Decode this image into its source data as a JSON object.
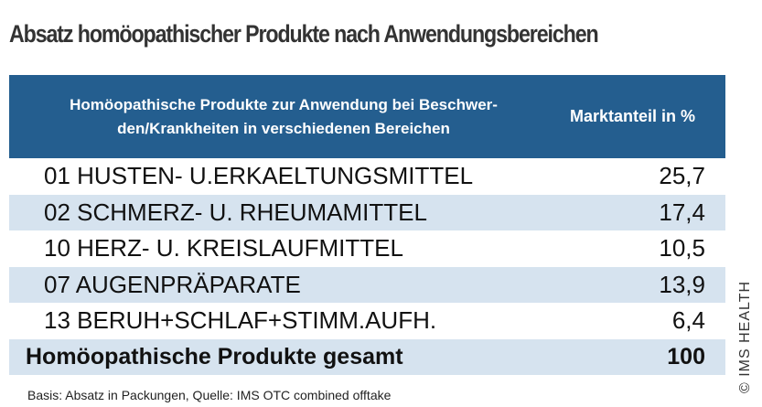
{
  "title": "Absatz homöopathischer Produkte nach Anwendungsbereichen",
  "table": {
    "headers": [
      "Homöopathische Produkte zur Anwendung bei Beschwer-den/Krankheiten in verschiedenen Bereichen",
      "Marktanteil in %"
    ],
    "rows": [
      {
        "label": "01 HUSTEN- U.ERKAELTUNGSMITTEL",
        "value": "25,7"
      },
      {
        "label": "02 SCHMERZ- U. RHEUMAMITTEL",
        "value": "17,4"
      },
      {
        "label": "10 HERZ- U. KREISLAUFMITTEL",
        "value": "10,5"
      },
      {
        "label": "07 AUGENPRÄPARATE",
        "value": "13,9"
      },
      {
        "label": "13 BERUH+SCHLAF+STIMM.AUFH.",
        "value": "6,4"
      }
    ],
    "total": {
      "label": "Homöopathische Produkte gesamt",
      "value": "100"
    }
  },
  "footnote": "Basis: Absatz in Packungen, Quelle: IMS OTC combined offtake",
  "copyright": "© IMS HEALTH",
  "colors": {
    "header": "#245e8f",
    "stripe": "#d6e3ef"
  }
}
